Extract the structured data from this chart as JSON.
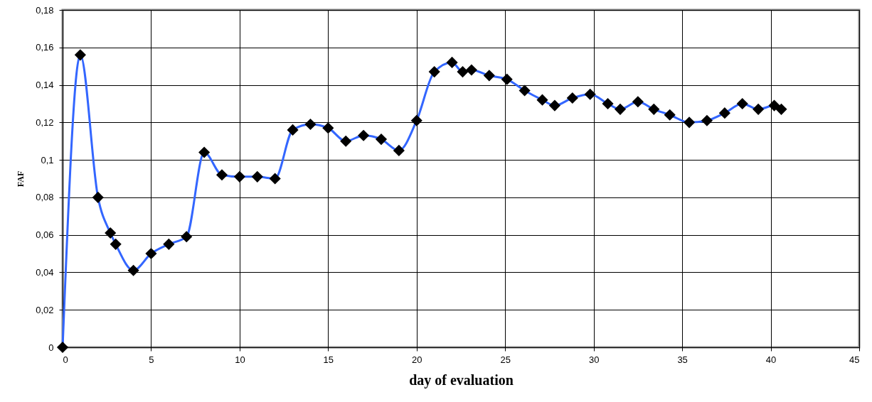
{
  "chart_data": {
    "type": "line",
    "xlabel": "day of evaluation",
    "ylabel": "FAF",
    "x": [
      0,
      1.0,
      2.0,
      2.7,
      3.0,
      4.0,
      5.0,
      6.0,
      7.0,
      8.0,
      9.0,
      10.0,
      11.0,
      12.0,
      13.0,
      14.0,
      15.0,
      16.0,
      17.0,
      18.0,
      19.0,
      20.0,
      21.0,
      22.0,
      22.6,
      23.1,
      24.1,
      25.1,
      26.1,
      27.1,
      27.8,
      28.8,
      29.8,
      30.8,
      31.5,
      32.5,
      33.4,
      34.3,
      35.4,
      36.4,
      37.4,
      38.4,
      39.3,
      40.2,
      40.6
    ],
    "series": [
      {
        "color": "#3366ff",
        "values": [
          0,
          0.156,
          0.08,
          0.061,
          0.055,
          0.041,
          0.05,
          0.055,
          0.059,
          0.104,
          0.092,
          0.091,
          0.091,
          0.09,
          0.116,
          0.119,
          0.117,
          0.11,
          0.113,
          0.111,
          0.105,
          0.121,
          0.147,
          0.152,
          0.147,
          0.148,
          0.145,
          0.143,
          0.137,
          0.132,
          0.129,
          0.133,
          0.135,
          0.13,
          0.127,
          0.131,
          0.127,
          0.124,
          0.12,
          0.121,
          0.125,
          0.13,
          0.127,
          0.129,
          0.127
        ]
      }
    ],
    "xlim": [
      0,
      45
    ],
    "xticks": [
      0,
      5,
      10,
      15,
      20,
      25,
      30,
      35,
      40,
      45
    ],
    "ylim": [
      0,
      0.18
    ],
    "yticks": [
      0,
      {
        "value": 0.02,
        "label": "0,02"
      },
      {
        "value": 0.04,
        "label": "0,04"
      },
      {
        "value": 0.06,
        "label": "0,06"
      },
      {
        "value": 0.08,
        "label": "0,08"
      },
      {
        "value": 0.1,
        "label": "0,1"
      },
      {
        "value": 0.12,
        "label": "0,12"
      },
      {
        "value": 0.14,
        "label": "0,14"
      },
      {
        "value": 0.16,
        "label": "0,16"
      },
      {
        "value": 0.18,
        "label": "0,18"
      }
    ],
    "grid": true,
    "marker": "diamond"
  }
}
